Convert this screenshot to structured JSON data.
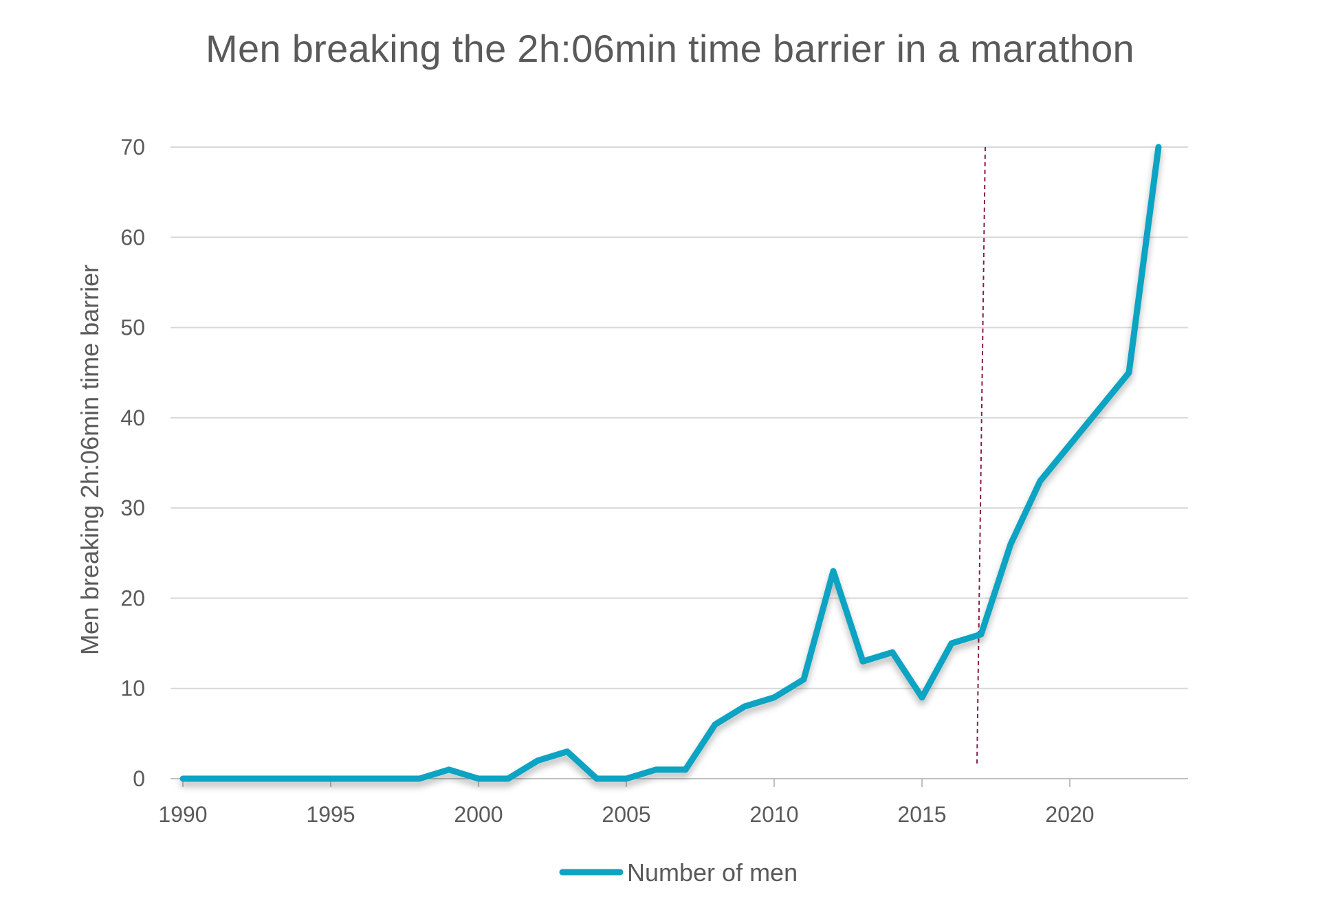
{
  "chart_data": {
    "type": "line",
    "title": "Men breaking the 2h:06min time barrier in a marathon",
    "ylabel": "Men breaking 2h:06min time barrier",
    "xlabel": "",
    "xlim": [
      1990,
      2023
    ],
    "ylim": [
      0,
      70
    ],
    "x_ticks": [
      1990,
      1995,
      2000,
      2005,
      2010,
      2015,
      2020
    ],
    "y_ticks": [
      0,
      10,
      20,
      30,
      40,
      50,
      60,
      70
    ],
    "grid": "horizontal",
    "legend_position": "bottom-center",
    "reference_line": {
      "x": 2017,
      "style": "dashed",
      "color": "#8b1a4a"
    },
    "x": [
      1990,
      1991,
      1992,
      1993,
      1994,
      1995,
      1996,
      1997,
      1998,
      1999,
      2000,
      2001,
      2002,
      2003,
      2004,
      2005,
      2006,
      2007,
      2008,
      2009,
      2010,
      2011,
      2012,
      2013,
      2014,
      2015,
      2016,
      2017,
      2018,
      2019,
      2020,
      2021,
      2022,
      2023
    ],
    "series": [
      {
        "name": "Number of men",
        "color": "#0fa3c2",
        "values": [
          0,
          0,
          0,
          0,
          0,
          0,
          0,
          0,
          0,
          1,
          0,
          0,
          2,
          3,
          0,
          0,
          1,
          1,
          6,
          8,
          9,
          11,
          23,
          13,
          14,
          9,
          15,
          16,
          26,
          33,
          37,
          41,
          45,
          70
        ]
      }
    ]
  }
}
